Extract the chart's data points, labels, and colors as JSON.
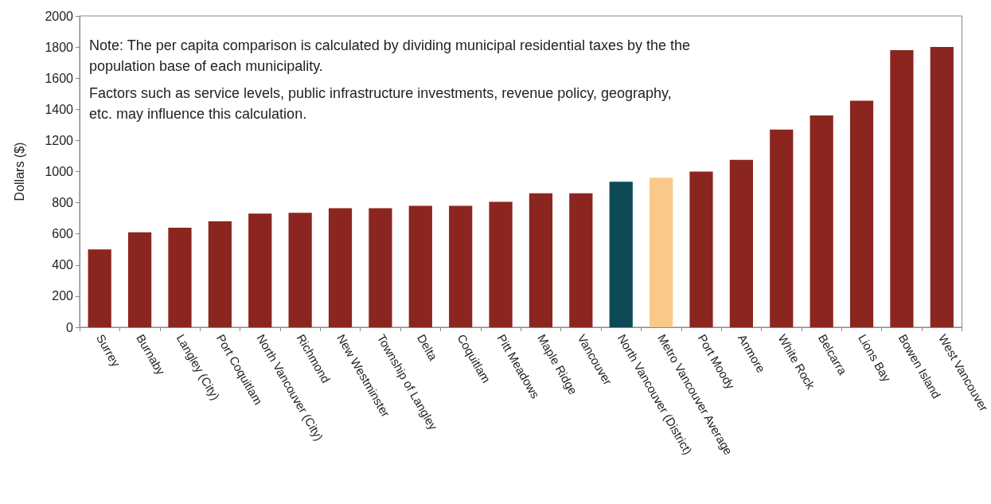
{
  "chart_data": {
    "type": "bar",
    "ylabel": "Dollars ($)",
    "categories": [
      "Surrey",
      "Burnaby",
      "Langley (City)",
      "Port Coquitlam",
      "North Vancouver (City)",
      "Richmond",
      "New Westminster",
      "Township of Langley",
      "Delta",
      "Coquitlam",
      "Pitt Meadows",
      "Maple Ridge",
      "Vancouver",
      "North Vancouver (District)",
      "Metro Vancouver Average",
      "Port Moody",
      "Anmore",
      "White Rock",
      "Belcarra",
      "Lions Bay",
      "Bowen Island",
      "West Vancouver"
    ],
    "values": [
      500,
      610,
      640,
      680,
      730,
      735,
      765,
      765,
      780,
      780,
      805,
      860,
      860,
      935,
      960,
      1000,
      1075,
      1270,
      1360,
      1455,
      1780,
      1800
    ],
    "colors": [
      "#8b2520",
      "#8b2520",
      "#8b2520",
      "#8b2520",
      "#8b2520",
      "#8b2520",
      "#8b2520",
      "#8b2520",
      "#8b2520",
      "#8b2520",
      "#8b2520",
      "#8b2520",
      "#8b2520",
      "#0d4a55",
      "#f9c98a",
      "#8b2520",
      "#8b2520",
      "#8b2520",
      "#8b2520",
      "#8b2520",
      "#8b2520",
      "#8b2520"
    ],
    "ylim": [
      0,
      2000
    ],
    "yticks": [
      0,
      200,
      400,
      600,
      800,
      1000,
      1200,
      1400,
      1600,
      1800,
      2000
    ],
    "grid": false,
    "annotations": [
      "Note: The per capita comparison is calculated by dividing municipal residential taxes by the the population base of each municipality.",
      "Factors such as service levels, public infrastructure investments, revenue policy, geography, etc. may influence this calculation."
    ]
  }
}
